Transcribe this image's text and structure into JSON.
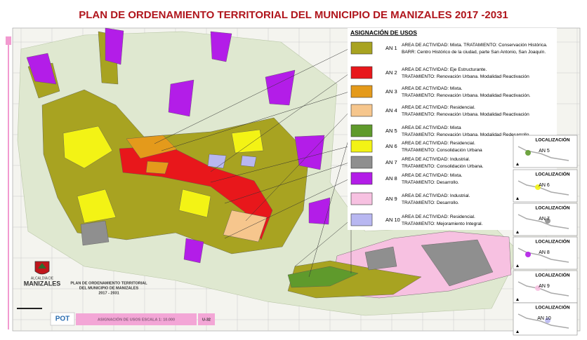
{
  "header": {
    "title": "PLAN DE ORDENAMIENTO TERRITORIAL DEL MUNICIPIO DE MANIZALES 2017 -2031"
  },
  "legend": {
    "title": "ASIGNACIÓN DE USOS",
    "items": [
      {
        "code": "AN 1",
        "color": "#a8a321",
        "lines": [
          "AREA DE ACTIVIDAD: Mixta. TRATAMIENTO: Conservación Histórica.",
          "BARR: Centro Histórico de la ciudad, parte San Antonio, San Joaquín."
        ]
      },
      {
        "code": "AN 2",
        "color": "#e8171b",
        "lines": [
          "AREA DE ACTIVIDAD: Eje Estructurante.",
          "TRATAMIENTO: Renovación Urbana.  Modalidad Reactivación"
        ]
      },
      {
        "code": "AN 3",
        "color": "#e49a1b",
        "lines": [
          "AREA DE ACTIVIDAD: Mixta.",
          "TRATAMIENTO: Renovación Urbana. Modalidad Reactivación."
        ]
      },
      {
        "code": "AN 4",
        "color": "#f6c68d",
        "lines": [
          "AREA DE ACTIVIDAD: Residencial.",
          "TRATAMIENTO: Renovación Urbana. Modalidad Reactivación"
        ]
      },
      {
        "code": "AN 5",
        "color": "#5f9a2c",
        "lines": [
          "AREA DE ACTIVIDAD: Mixta",
          "TRATAMIENTO: Renovación Urbana. Modalidad Redesarrollo"
        ]
      },
      {
        "code": "AN 6",
        "color": "#f3f315",
        "lines": [
          "AREA DE ACTIVIDAD: Residencial.",
          "TRATAMIENTO: Consolidación Urbana"
        ]
      },
      {
        "code": "AN 7",
        "color": "#8f8f8f",
        "lines": [
          "AREA DE ACTIVIDAD: Industrial.",
          "TRATAMIENTO: Consolidación Urbana."
        ]
      },
      {
        "code": "AN 8",
        "color": "#b31de8",
        "lines": [
          "AREA DE ACTIVIDAD: Mixta.",
          "TRATAMIENTO: Desarrollo."
        ]
      },
      {
        "code": "AN 9",
        "color": "#f7c1e1",
        "lines": [
          "AREA DE ACTIVIDAD: Industrial.",
          "TRATAMIENTO: Desarrollo."
        ]
      },
      {
        "code": "AN 10",
        "color": "#b8b7f1",
        "lines": [
          "AREA DE ACTIVIDAD: Residencial.",
          "TRATAMIENTO: Mejoramiento Integral."
        ]
      }
    ]
  },
  "locators": [
    {
      "title": "LOCALIZACIÓN",
      "code": "AN 5"
    },
    {
      "title": "LOCALIZACIÓN",
      "code": "AN 6"
    },
    {
      "title": "LOCALIZACIÓN",
      "code": "AN 7"
    },
    {
      "title": "LOCALIZACIÓN",
      "code": "AN 8"
    },
    {
      "title": "LOCALIZACIÓN",
      "code": "AN 9"
    },
    {
      "title": "LOCALIZACIÓN",
      "code": "AN 10"
    }
  ],
  "footer": {
    "plan_lines": [
      "PLAN DE ORDENAMIENTO TERRITORIAL",
      "DEL MUNICIPIO DE MANIZALES",
      "2017 - 2031"
    ],
    "logo_lines": [
      "ALCALDÍA DE",
      "MANIZALES"
    ],
    "pot": "POT",
    "sheet_title": "ASIGNACIÓN DE USOS ESCALA 1: 10.000",
    "sheet_code": "U-32"
  }
}
